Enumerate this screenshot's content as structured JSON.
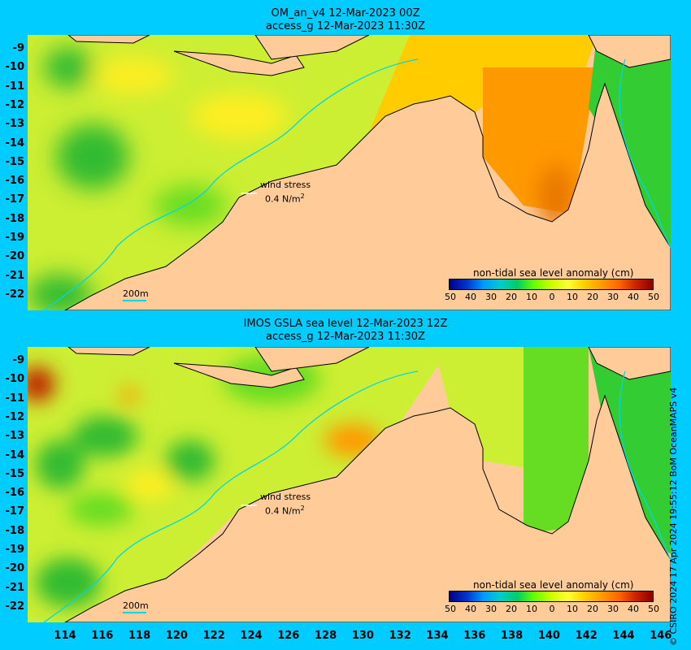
{
  "panels": [
    {
      "title_line1": "OM_an_v4  12-Mar-2023 00Z",
      "title_line2": "access_g 12-Mar-2023 11:30Z",
      "wind_label": "wind stress",
      "wind_value": "0.4 N/m",
      "wind_unit_exp": "2",
      "scale_label": "200m",
      "colorbar_title": "non-tidal sea level anomaly (cm)"
    },
    {
      "title_line1": "IMOS GSLA sea level  12-Mar-2023 12Z",
      "title_line2": "access_g 12-Mar-2023 11:30Z",
      "wind_label": "wind stress",
      "wind_value": "0.4 N/m",
      "wind_unit_exp": "2",
      "scale_label": "200m",
      "colorbar_title": "non-tidal sea level anomaly (cm)"
    }
  ],
  "y_ticks": [
    "-9",
    "-10",
    "-11",
    "-12",
    "-13",
    "-14",
    "-15",
    "-16",
    "-17",
    "-18",
    "-19",
    "-20",
    "-21",
    "-22"
  ],
  "x_ticks": [
    "114",
    "116",
    "118",
    "120",
    "122",
    "124",
    "126",
    "128",
    "130",
    "132",
    "134",
    "136",
    "138",
    "140",
    "142",
    "144",
    "146"
  ],
  "colorbar_ticks": [
    "50",
    "40",
    "30",
    "20",
    "10",
    "0",
    "10",
    "20",
    "30",
    "40",
    "50"
  ],
  "colorbar_colors": [
    "#00008b",
    "#0033cc",
    "#0099ff",
    "#00cccc",
    "#00cc66",
    "#66ff00",
    "#ccff00",
    "#ffff33",
    "#ffcc00",
    "#ff9900",
    "#ff6600",
    "#cc2200",
    "#8b0000"
  ],
  "colors": {
    "background": "#00ccff",
    "land": "#ffcc99",
    "ocean_base": "#ccee33",
    "contour_200m": "#00d7e6"
  },
  "credit": "© CSIRO 2024  17 Apr 2024 19:55:12 BoM OceanMAPS v4"
}
